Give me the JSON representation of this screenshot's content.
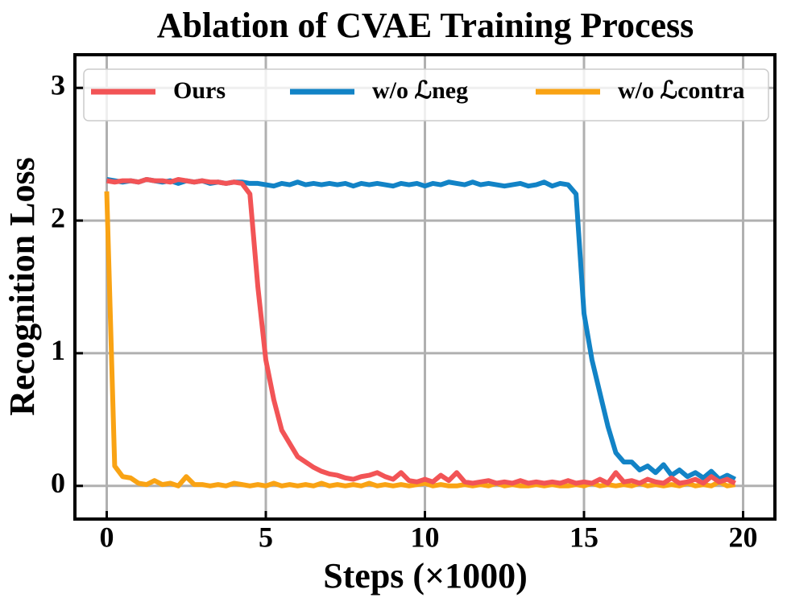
{
  "chart_data": {
    "type": "line",
    "title": "Ablation of CVAE Training Process",
    "x_label": "Steps (×1000)",
    "y_label": "Recognition Loss",
    "xlim": [
      -1,
      21
    ],
    "ylim": [
      -0.25,
      3.25
    ],
    "xticks": [
      0,
      5,
      10,
      15,
      20
    ],
    "yticks": [
      0,
      1,
      2,
      3
    ],
    "grid": true,
    "legend": "upper center",
    "x": [
      0,
      0.25,
      0.5,
      0.75,
      1,
      1.25,
      1.5,
      1.75,
      2,
      2.25,
      2.5,
      2.75,
      3,
      3.25,
      3.5,
      3.75,
      4,
      4.25,
      4.5,
      4.75,
      5,
      5.25,
      5.5,
      5.75,
      6,
      6.25,
      6.5,
      6.75,
      7,
      7.25,
      7.5,
      7.75,
      8,
      8.25,
      8.5,
      8.75,
      9,
      9.25,
      9.5,
      9.75,
      10,
      10.25,
      10.5,
      10.75,
      11,
      11.25,
      11.5,
      11.75,
      12,
      12.25,
      12.5,
      12.75,
      13,
      13.25,
      13.5,
      13.75,
      14,
      14.25,
      14.5,
      14.75,
      15,
      15.25,
      15.5,
      15.75,
      16,
      16.25,
      16.5,
      16.75,
      17,
      17.25,
      17.5,
      17.75,
      18,
      18.25,
      18.5,
      18.75,
      19,
      19.25,
      19.5,
      19.75
    ],
    "series": [
      {
        "name": "w/o ℒneg",
        "color": "#1283c6",
        "values": [
          2.31,
          2.3,
          2.29,
          2.3,
          2.29,
          2.31,
          2.3,
          2.29,
          2.3,
          2.28,
          2.3,
          2.29,
          2.3,
          2.28,
          2.29,
          2.28,
          2.29,
          2.29,
          2.28,
          2.28,
          2.27,
          2.26,
          2.28,
          2.27,
          2.29,
          2.27,
          2.28,
          2.27,
          2.28,
          2.27,
          2.28,
          2.26,
          2.28,
          2.27,
          2.28,
          2.27,
          2.26,
          2.28,
          2.27,
          2.28,
          2.26,
          2.28,
          2.27,
          2.29,
          2.28,
          2.27,
          2.29,
          2.27,
          2.28,
          2.27,
          2.26,
          2.27,
          2.28,
          2.26,
          2.27,
          2.29,
          2.26,
          2.28,
          2.27,
          2.2,
          1.3,
          0.95,
          0.7,
          0.45,
          0.25,
          0.18,
          0.18,
          0.12,
          0.15,
          0.1,
          0.16,
          0.08,
          0.12,
          0.07,
          0.1,
          0.06,
          0.11,
          0.05,
          0.08,
          0.05
        ]
      },
      {
        "name": "w/o ℒcontra",
        "color": "#f9a314",
        "values": [
          2.22,
          0.15,
          0.07,
          0.06,
          0.02,
          0.01,
          0.04,
          0.01,
          0.02,
          0.0,
          0.07,
          0.01,
          0.01,
          0.0,
          0.01,
          0.0,
          0.02,
          0.01,
          0.0,
          0.01,
          0.0,
          0.02,
          0.0,
          0.01,
          0.0,
          0.01,
          0.0,
          0.02,
          0.0,
          0.01,
          0.0,
          0.01,
          0.0,
          0.02,
          0.0,
          0.01,
          0.0,
          0.01,
          0.0,
          0.01,
          0.02,
          0.0,
          0.01,
          0.0,
          0.0,
          0.01,
          0.0,
          0.01,
          0.0,
          0.02,
          0.0,
          0.01,
          0.0,
          0.0,
          0.01,
          0.0,
          0.01,
          0.0,
          0.0,
          0.01,
          0.0,
          0.02,
          0.0,
          0.01,
          0.0,
          0.01,
          0.0,
          0.02,
          0.0,
          0.01,
          0.0,
          0.01,
          0.0,
          0.02,
          0.0,
          0.01,
          0.0,
          0.03,
          0.0,
          0.01
        ]
      },
      {
        "name": "Ours",
        "color": "#f25456",
        "values": [
          2.3,
          2.29,
          2.3,
          2.3,
          2.29,
          2.31,
          2.3,
          2.3,
          2.29,
          2.31,
          2.3,
          2.29,
          2.3,
          2.29,
          2.29,
          2.28,
          2.29,
          2.28,
          2.2,
          1.5,
          0.95,
          0.65,
          0.42,
          0.32,
          0.22,
          0.18,
          0.14,
          0.11,
          0.09,
          0.08,
          0.06,
          0.05,
          0.07,
          0.08,
          0.1,
          0.07,
          0.05,
          0.1,
          0.04,
          0.03,
          0.05,
          0.03,
          0.08,
          0.04,
          0.1,
          0.03,
          0.02,
          0.03,
          0.04,
          0.02,
          0.03,
          0.02,
          0.04,
          0.02,
          0.03,
          0.02,
          0.03,
          0.02,
          0.04,
          0.02,
          0.03,
          0.02,
          0.05,
          0.02,
          0.1,
          0.03,
          0.04,
          0.02,
          0.05,
          0.03,
          0.02,
          0.06,
          0.02,
          0.03,
          0.05,
          0.02,
          0.07,
          0.03,
          0.05,
          0.02
        ]
      }
    ]
  }
}
